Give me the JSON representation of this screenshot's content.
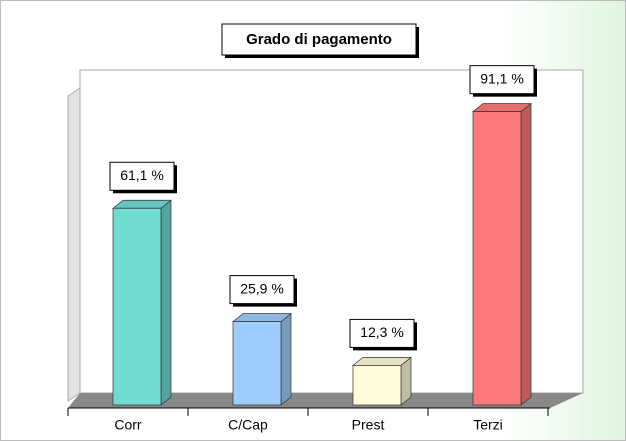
{
  "chart_data": {
    "type": "bar3d",
    "title": "Grado di pagamento",
    "categories": [
      "Corr",
      "C/Cap",
      "Prest",
      "Terzi"
    ],
    "values": [
      61.1,
      25.9,
      12.3,
      91.1
    ],
    "value_labels": [
      "61,1 %",
      "25,9 %",
      "12,3 %",
      "91,1 %"
    ],
    "colors": [
      "#6fdcd2",
      "#9dcdfb",
      "#fffbd9",
      "#fd7a7a"
    ],
    "ylim": [
      0,
      100
    ]
  }
}
